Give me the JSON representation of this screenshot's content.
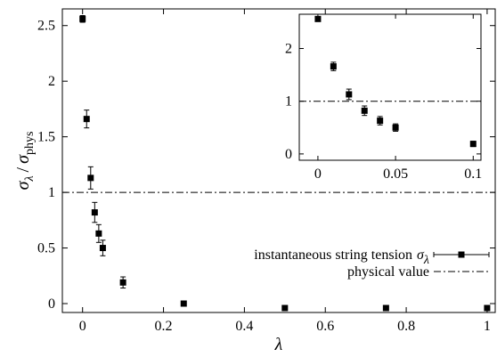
{
  "chart_data": {
    "type": "scatter",
    "xlabel": "λ",
    "ylabel": {
      "num_symbol": "σ",
      "num_sub": "λ",
      "separator": "/",
      "den_symbol": "σ",
      "den_sub": "phys"
    },
    "xlim": [
      -0.05,
      1.02
    ],
    "ylim": [
      -0.08,
      2.65
    ],
    "xticks": [
      0,
      0.2,
      0.4,
      0.6,
      0.8,
      1
    ],
    "xtick_labels": [
      "0",
      "0.2",
      "0.4",
      "0.6",
      "0.8",
      "1"
    ],
    "yticks": [
      0,
      0.5,
      1,
      1.5,
      2,
      2.5
    ],
    "ytick_labels": [
      "0",
      "0.5",
      "1",
      "1.5",
      "2",
      "2.5"
    ],
    "grid": false,
    "legend_position": "bottom-right",
    "series": [
      {
        "name": "instantaneous string tension σλ",
        "label_text": "instantaneous string tension",
        "label_symbol": "σ",
        "label_sub": "λ",
        "style": "points-with-errorbars",
        "color": "#000000",
        "x": [
          0,
          0.01,
          0.02,
          0.03,
          0.04,
          0.05,
          0.1,
          0.25,
          0.5,
          0.75,
          1
        ],
        "y": [
          2.56,
          1.66,
          1.13,
          0.82,
          0.63,
          0.5,
          0.19,
          0.0,
          -0.04,
          -0.04,
          -0.04
        ],
        "yerr": [
          0.03,
          0.08,
          0.1,
          0.09,
          0.08,
          0.07,
          0.05,
          0.01,
          0.01,
          0.01,
          0.01
        ]
      },
      {
        "name": "physical value",
        "style": "dash-dot-line",
        "color": "#000000",
        "y": 1
      }
    ],
    "inset": {
      "position": "top-right",
      "xlim": [
        -0.012,
        0.105
      ],
      "ylim": [
        -0.12,
        2.65
      ],
      "xticks": [
        0,
        0.05,
        0.1
      ],
      "xtick_labels": [
        "0",
        "0.05",
        "0.1"
      ],
      "yticks": [
        0,
        1,
        2
      ],
      "ytick_labels": [
        "0",
        "1",
        "2"
      ],
      "x": [
        0,
        0.01,
        0.02,
        0.03,
        0.04,
        0.05,
        0.1
      ],
      "y": [
        2.56,
        1.66,
        1.13,
        0.82,
        0.63,
        0.5,
        0.19
      ],
      "yerr": [
        0.03,
        0.08,
        0.1,
        0.09,
        0.08,
        0.07,
        0.05
      ],
      "reference_line": 1
    }
  }
}
